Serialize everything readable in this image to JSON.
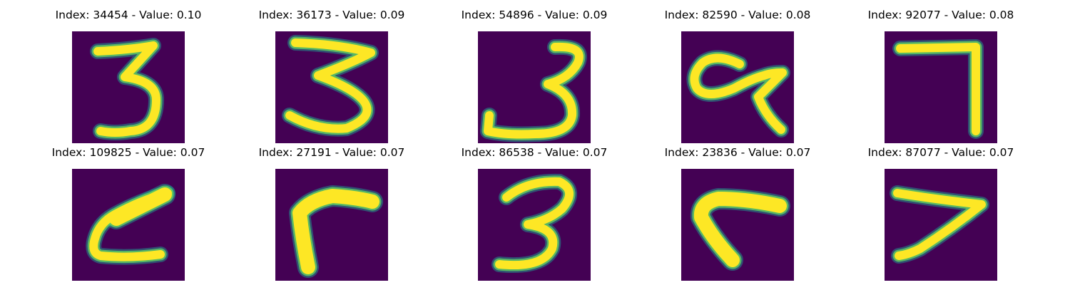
{
  "colors": {
    "background": "#440154",
    "stroke_outer": "#21918c",
    "stroke_mid": "#5ec962",
    "stroke_core": "#fde725"
  },
  "panels": [
    {
      "title": "Index: 34454 - Value: 0.10",
      "image": "digit-3"
    },
    {
      "title": "Index: 36173 - Value: 0.09",
      "image": "digit-3"
    },
    {
      "title": "Index: 54896 - Value: 0.09",
      "image": "digit-3"
    },
    {
      "title": "Index: 82590 - Value: 0.08",
      "image": "digit-4-loop"
    },
    {
      "title": "Index: 92077 - Value: 0.08",
      "image": "digit-7"
    },
    {
      "title": "Index: 109825 - Value: 0.07",
      "image": "digit-2-rotated"
    },
    {
      "title": "Index: 27191 - Value: 0.07",
      "image": "digit-angle"
    },
    {
      "title": "Index: 86538 - Value: 0.07",
      "image": "digit-3"
    },
    {
      "title": "Index: 23836 - Value: 0.07",
      "image": "digit-angle"
    },
    {
      "title": "Index: 87077 - Value: 0.07",
      "image": "digit-7"
    }
  ]
}
